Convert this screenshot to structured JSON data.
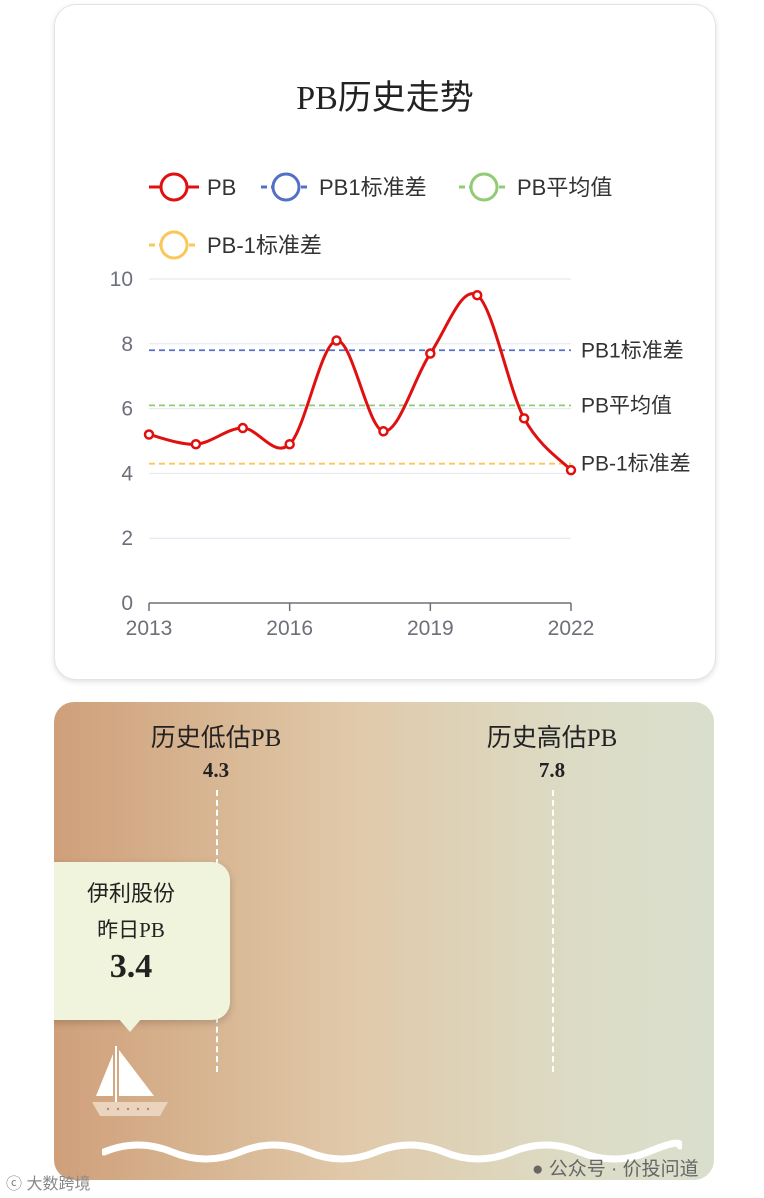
{
  "chart_data": {
    "type": "line",
    "title": "PB历史走势",
    "x": [
      2013,
      2014,
      2015,
      2016,
      2017,
      2018,
      2019,
      2020,
      2021,
      2022
    ],
    "x_ticks": [
      "2013",
      "2016",
      "2019",
      "2022"
    ],
    "ylim": [
      0,
      10
    ],
    "y_ticks": [
      "0",
      "2",
      "4",
      "6",
      "8",
      "10"
    ],
    "series": [
      {
        "name": "PB",
        "color": "#e01010",
        "values": [
          5.2,
          4.9,
          5.4,
          4.9,
          8.1,
          5.3,
          7.7,
          9.5,
          5.7,
          4.1
        ]
      }
    ],
    "reference_lines": [
      {
        "name": "PB1标准差",
        "value": 7.8,
        "color": "#5470c6"
      },
      {
        "name": "PB平均值",
        "value": 6.1,
        "color": "#91cc75"
      },
      {
        "name": "PB-1标准差",
        "value": 4.3,
        "color": "#fac858"
      }
    ],
    "legend": [
      "PB",
      "PB1标准差",
      "PB平均值",
      "PB-1标准差"
    ],
    "legend_position": "top",
    "grid": true
  },
  "valuation": {
    "low_label": "历史低估PB",
    "low_value": "4.3",
    "high_label": "历史高估PB",
    "high_value": "7.8",
    "stock_name": "伊利股份",
    "current_label": "昨日PB",
    "current_value": "3.4"
  },
  "footer": {
    "watermark_left": "大数跨境",
    "watermark_right": "公众号 · 价投问道"
  }
}
